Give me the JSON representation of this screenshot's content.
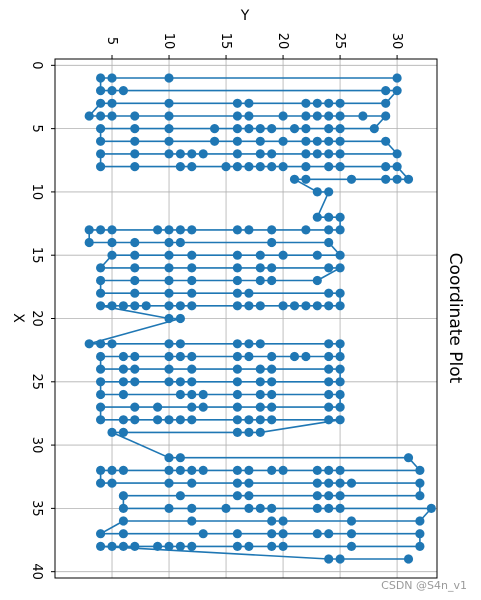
{
  "chart_data": {
    "type": "line",
    "title": "Coordinate Plot",
    "xlabel": "X",
    "ylabel": "Y",
    "xlim": [
      -0.5,
      40.5
    ],
    "ylim": [
      0,
      33.5
    ],
    "grid": true,
    "marker": "circle",
    "color": "#1f77b4",
    "x_ticks": [
      0,
      5,
      10,
      15,
      20,
      25,
      30,
      35,
      40
    ],
    "y_ticks": [
      5,
      10,
      15,
      20,
      25,
      30
    ],
    "series": [
      {
        "points": [
          [
            1,
            30
          ],
          [
            1,
            10
          ],
          [
            1,
            5
          ],
          [
            1,
            4
          ],
          [
            2,
            4
          ],
          [
            2,
            6
          ],
          [
            2,
            5
          ],
          [
            2,
            29
          ],
          [
            2,
            30
          ],
          [
            3,
            29
          ],
          [
            3,
            25
          ],
          [
            3,
            24
          ],
          [
            3,
            23
          ],
          [
            3,
            22
          ],
          [
            3,
            17
          ],
          [
            3,
            16
          ],
          [
            3,
            10
          ],
          [
            3,
            5
          ],
          [
            3,
            4
          ],
          [
            4,
            3
          ],
          [
            4,
            4
          ],
          [
            4,
            5
          ],
          [
            4,
            7
          ],
          [
            4,
            10
          ],
          [
            4,
            16
          ],
          [
            4,
            17
          ],
          [
            4,
            20
          ],
          [
            4,
            22
          ],
          [
            4,
            23
          ],
          [
            4,
            24
          ],
          [
            4,
            25
          ],
          [
            4,
            27
          ],
          [
            4,
            29
          ],
          [
            5,
            28
          ],
          [
            5,
            25
          ],
          [
            5,
            24
          ],
          [
            5,
            22
          ],
          [
            5,
            21
          ],
          [
            5,
            19
          ],
          [
            5,
            18
          ],
          [
            5,
            17
          ],
          [
            5,
            16
          ],
          [
            5,
            14
          ],
          [
            5,
            10
          ],
          [
            5,
            7
          ],
          [
            5,
            4
          ],
          [
            6,
            4
          ],
          [
            6,
            7
          ],
          [
            6,
            10
          ],
          [
            6,
            14
          ],
          [
            6,
            16
          ],
          [
            6,
            18
          ],
          [
            6,
            20
          ],
          [
            6,
            22
          ],
          [
            6,
            23
          ],
          [
            6,
            24
          ],
          [
            6,
            25
          ],
          [
            6,
            29
          ],
          [
            7,
            30
          ],
          [
            7,
            25
          ],
          [
            7,
            24
          ],
          [
            7,
            23
          ],
          [
            7,
            22
          ],
          [
            7,
            19
          ],
          [
            7,
            18
          ],
          [
            7,
            16
          ],
          [
            7,
            13
          ],
          [
            7,
            12
          ],
          [
            7,
            11
          ],
          [
            7,
            10
          ],
          [
            7,
            7
          ],
          [
            7,
            4
          ],
          [
            8,
            4
          ],
          [
            8,
            7
          ],
          [
            8,
            11
          ],
          [
            8,
            12
          ],
          [
            8,
            15
          ],
          [
            8,
            16
          ],
          [
            8,
            17
          ],
          [
            8,
            18
          ],
          [
            8,
            19
          ],
          [
            8,
            20
          ],
          [
            8,
            22
          ],
          [
            8,
            24
          ],
          [
            8,
            25
          ],
          [
            8,
            29
          ],
          [
            8,
            30
          ],
          [
            9,
            31
          ],
          [
            9,
            30
          ],
          [
            9,
            29
          ],
          [
            9,
            26
          ],
          [
            9,
            22
          ],
          [
            9,
            21
          ],
          [
            10,
            23
          ],
          [
            10,
            24
          ],
          [
            12,
            23
          ],
          [
            12,
            24
          ],
          [
            12,
            25
          ],
          [
            13,
            25
          ],
          [
            13,
            24
          ],
          [
            13,
            22
          ],
          [
            13,
            19
          ],
          [
            13,
            17
          ],
          [
            13,
            16
          ],
          [
            13,
            12
          ],
          [
            13,
            11
          ],
          [
            13,
            10
          ],
          [
            13,
            9
          ],
          [
            13,
            5
          ],
          [
            13,
            4
          ],
          [
            13,
            3
          ],
          [
            14,
            3
          ],
          [
            14,
            5
          ],
          [
            14,
            7
          ],
          [
            14,
            10
          ],
          [
            14,
            11
          ],
          [
            14,
            19
          ],
          [
            14,
            24
          ],
          [
            15,
            25
          ],
          [
            15,
            23
          ],
          [
            15,
            20
          ],
          [
            15,
            18
          ],
          [
            15,
            16
          ],
          [
            15,
            12
          ],
          [
            15,
            10
          ],
          [
            15,
            7
          ],
          [
            15,
            5
          ],
          [
            16,
            4
          ],
          [
            16,
            7
          ],
          [
            16,
            10
          ],
          [
            16,
            12
          ],
          [
            16,
            16
          ],
          [
            16,
            18
          ],
          [
            16,
            19
          ],
          [
            16,
            24
          ],
          [
            16,
            25
          ],
          [
            17,
            23
          ],
          [
            17,
            19
          ],
          [
            17,
            18
          ],
          [
            17,
            16
          ],
          [
            17,
            12
          ],
          [
            17,
            10
          ],
          [
            17,
            7
          ],
          [
            17,
            4
          ],
          [
            18,
            4
          ],
          [
            18,
            7
          ],
          [
            18,
            10
          ],
          [
            18,
            12
          ],
          [
            18,
            16
          ],
          [
            18,
            17
          ],
          [
            18,
            24
          ],
          [
            18,
            25
          ],
          [
            19,
            25
          ],
          [
            19,
            24
          ],
          [
            19,
            23
          ],
          [
            19,
            22
          ],
          [
            19,
            21
          ],
          [
            19,
            20
          ],
          [
            19,
            18
          ],
          [
            19,
            17
          ],
          [
            19,
            16
          ],
          [
            19,
            12
          ],
          [
            19,
            11
          ],
          [
            19,
            10
          ],
          [
            19,
            8
          ],
          [
            19,
            7
          ],
          [
            19,
            6
          ],
          [
            19,
            5
          ],
          [
            19,
            4
          ],
          [
            20,
            10
          ],
          [
            20,
            11
          ],
          [
            22,
            3
          ],
          [
            22,
            4
          ],
          [
            22,
            5
          ],
          [
            22,
            10
          ],
          [
            22,
            11
          ],
          [
            22,
            16
          ],
          [
            22,
            17
          ],
          [
            22,
            18
          ],
          [
            22,
            24
          ],
          [
            22,
            25
          ],
          [
            23,
            25
          ],
          [
            23,
            24
          ],
          [
            23,
            22
          ],
          [
            23,
            21
          ],
          [
            23,
            19
          ],
          [
            23,
            17
          ],
          [
            23,
            16
          ],
          [
            23,
            12
          ],
          [
            23,
            11
          ],
          [
            23,
            10
          ],
          [
            23,
            7
          ],
          [
            23,
            6
          ],
          [
            23,
            4
          ],
          [
            24,
            4
          ],
          [
            24,
            6
          ],
          [
            24,
            7
          ],
          [
            24,
            10
          ],
          [
            24,
            12
          ],
          [
            24,
            16
          ],
          [
            24,
            18
          ],
          [
            24,
            19
          ],
          [
            24,
            24
          ],
          [
            24,
            25
          ],
          [
            25,
            25
          ],
          [
            25,
            24
          ],
          [
            25,
            19
          ],
          [
            25,
            18
          ],
          [
            25,
            16
          ],
          [
            25,
            12
          ],
          [
            25,
            11
          ],
          [
            25,
            10
          ],
          [
            25,
            7
          ],
          [
            25,
            6
          ],
          [
            25,
            4
          ],
          [
            26,
            4
          ],
          [
            26,
            6
          ],
          [
            26,
            11
          ],
          [
            26,
            12
          ],
          [
            26,
            13
          ],
          [
            26,
            16
          ],
          [
            26,
            18
          ],
          [
            26,
            19
          ],
          [
            26,
            24
          ],
          [
            26,
            25
          ],
          [
            27,
            25
          ],
          [
            27,
            24
          ],
          [
            27,
            19
          ],
          [
            27,
            18
          ],
          [
            27,
            16
          ],
          [
            27,
            13
          ],
          [
            27,
            12
          ],
          [
            27,
            9
          ],
          [
            27,
            7
          ],
          [
            27,
            4
          ],
          [
            28,
            4
          ],
          [
            28,
            6
          ],
          [
            28,
            7
          ],
          [
            28,
            9
          ],
          [
            28,
            10
          ],
          [
            28,
            11
          ],
          [
            28,
            12
          ],
          [
            28,
            16
          ],
          [
            28,
            17
          ],
          [
            28,
            18
          ],
          [
            28,
            19
          ],
          [
            28,
            24
          ],
          [
            28,
            25
          ],
          [
            29,
            18
          ],
          [
            29,
            17
          ],
          [
            29,
            16
          ],
          [
            29,
            6
          ],
          [
            29,
            5
          ],
          [
            31,
            10
          ],
          [
            31,
            11
          ],
          [
            31,
            31
          ],
          [
            32,
            32
          ],
          [
            32,
            25
          ],
          [
            32,
            24
          ],
          [
            32,
            23
          ],
          [
            32,
            20
          ],
          [
            32,
            19
          ],
          [
            32,
            17
          ],
          [
            32,
            16
          ],
          [
            32,
            13
          ],
          [
            32,
            12
          ],
          [
            32,
            11
          ],
          [
            32,
            10
          ],
          [
            32,
            6
          ],
          [
            32,
            5
          ],
          [
            32,
            4
          ],
          [
            33,
            4
          ],
          [
            33,
            5
          ],
          [
            33,
            10
          ],
          [
            33,
            12
          ],
          [
            33,
            16
          ],
          [
            33,
            17
          ],
          [
            33,
            23
          ],
          [
            33,
            24
          ],
          [
            33,
            25
          ],
          [
            33,
            26
          ],
          [
            33,
            32
          ],
          [
            34,
            32
          ],
          [
            34,
            25
          ],
          [
            34,
            24
          ],
          [
            34,
            23
          ],
          [
            34,
            17
          ],
          [
            34,
            16
          ],
          [
            34,
            11
          ],
          [
            34,
            6
          ],
          [
            35,
            6
          ],
          [
            35,
            10
          ],
          [
            35,
            12
          ],
          [
            35,
            15
          ],
          [
            35,
            17
          ],
          [
            35,
            18
          ],
          [
            35,
            19
          ],
          [
            35,
            23
          ],
          [
            35,
            24
          ],
          [
            35,
            25
          ],
          [
            35,
            33
          ],
          [
            36,
            32
          ],
          [
            36,
            26
          ],
          [
            36,
            20
          ],
          [
            36,
            19
          ],
          [
            36,
            12
          ],
          [
            36,
            6
          ],
          [
            37,
            4
          ],
          [
            37,
            6
          ],
          [
            37,
            13
          ],
          [
            37,
            16
          ],
          [
            37,
            19
          ],
          [
            37,
            20
          ],
          [
            37,
            23
          ],
          [
            37,
            24
          ],
          [
            37,
            26
          ],
          [
            37,
            32
          ],
          [
            38,
            32
          ],
          [
            38,
            26
          ],
          [
            38,
            20
          ],
          [
            38,
            19
          ],
          [
            38,
            17
          ],
          [
            38,
            16
          ],
          [
            38,
            12
          ],
          [
            38,
            11
          ],
          [
            38,
            10
          ],
          [
            38,
            9
          ],
          [
            38,
            7
          ],
          [
            38,
            6
          ],
          [
            38,
            5
          ],
          [
            38,
            4
          ],
          [
            39,
            24
          ],
          [
            39,
            25
          ],
          [
            39,
            31
          ]
        ]
      }
    ]
  },
  "watermark": "CSDN @S4n_v1"
}
